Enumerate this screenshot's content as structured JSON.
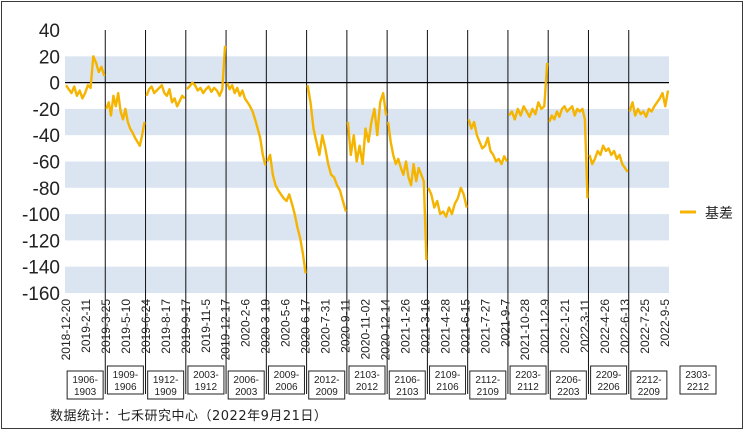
{
  "chart_data": {
    "type": "line",
    "title": "",
    "xlabel": "",
    "ylabel": "",
    "ylim": [
      -160,
      40
    ],
    "y_ticks": [
      40,
      20,
      0,
      -20,
      -40,
      -60,
      -80,
      -100,
      -120,
      -140,
      -160
    ],
    "grid": "alternating horizontal bands",
    "legend_position": "right",
    "series": [
      {
        "name": "基差",
        "color": "#f5b400",
        "segments": [
          {
            "contract": "1906-1903",
            "values": [
              -2,
              -5,
              -8,
              -3,
              -10,
              -6,
              -12,
              -8,
              -2,
              -4,
              20,
              15,
              8,
              12,
              5
            ]
          },
          {
            "contract": "1909-1906",
            "values": [
              -20,
              -15,
              -25,
              -10,
              -18,
              -8,
              -22,
              -28,
              -20,
              -30,
              -35,
              -38,
              -42,
              -45,
              -48,
              -40,
              -30
            ]
          },
          {
            "contract": "1912-1909",
            "values": [
              -10,
              -5,
              -3,
              -8,
              -6,
              -4,
              -2,
              -8,
              -10,
              -5,
              -15,
              -12,
              -18,
              -14,
              -10,
              -12
            ]
          },
          {
            "contract": "2003-1912",
            "values": [
              -5,
              -3,
              0,
              -2,
              -6,
              -4,
              -8,
              -5,
              -3,
              -7,
              -4,
              -6,
              -10,
              -5,
              28
            ]
          },
          {
            "contract": "2006-2003",
            "values": [
              0,
              -5,
              -2,
              -8,
              -4,
              -10,
              -6,
              -12,
              -15,
              -18,
              -22,
              -28,
              -35,
              -42,
              -55,
              -63
            ]
          },
          {
            "contract": "2009-2006",
            "values": [
              -60,
              -55,
              -70,
              -78,
              -82,
              -85,
              -88,
              -90,
              -85,
              -92,
              -100,
              -110,
              -118,
              -130,
              -145
            ]
          },
          {
            "contract": "2012-2009",
            "values": [
              -2,
              -15,
              -35,
              -45,
              -55,
              -40,
              -50,
              -62,
              -70,
              -72,
              -78,
              -82,
              -90,
              -98
            ]
          },
          {
            "contract": "2103-2012",
            "values": [
              -30,
              -55,
              -40,
              -60,
              -48,
              -62,
              -35,
              -45,
              -30,
              -20,
              -40,
              -15,
              -8,
              -25
            ]
          },
          {
            "contract": "2106-2103",
            "values": [
              -30,
              -45,
              -55,
              -62,
              -58,
              -65,
              -70,
              -60,
              -72,
              -78,
              -62,
              -75,
              -65,
              -70,
              -75,
              -135
            ]
          },
          {
            "contract": "2109-2106",
            "values": [
              -80,
              -85,
              -95,
              -90,
              -100,
              -98,
              -102,
              -95,
              -100,
              -92,
              -88,
              -80,
              -85,
              -95
            ]
          },
          {
            "contract": "2112-2109",
            "values": [
              -28,
              -35,
              -30,
              -40,
              -45,
              -50,
              -48,
              -42,
              -52,
              -55,
              -60,
              -58,
              -62,
              -56,
              -60
            ]
          },
          {
            "contract": "2203-2112",
            "values": [
              -25,
              -22,
              -28,
              -20,
              -25,
              -18,
              -22,
              -26,
              -20,
              -24,
              -15,
              -20,
              -18,
              15
            ]
          },
          {
            "contract": "2206-2203",
            "values": [
              -30,
              -25,
              -28,
              -22,
              -26,
              -20,
              -18,
              -22,
              -20,
              -18,
              -25,
              -20,
              -22,
              -20,
              -28,
              -88
            ]
          },
          {
            "contract": "2209-2206",
            "values": [
              -55,
              -62,
              -58,
              -52,
              -55,
              -48,
              -52,
              -50,
              -55,
              -52,
              -58,
              -55,
              -62,
              -65,
              -68
            ]
          },
          {
            "contract": "2212-2209",
            "values": [
              -22,
              -15,
              -25,
              -20,
              -24,
              -22,
              -26,
              -20,
              -22,
              -18,
              -15,
              -12,
              -8,
              -18,
              -6
            ]
          }
        ]
      }
    ],
    "x_tick_labels": [
      "2018-12-20",
      "2019-2-11",
      "2019-3-25",
      "2019-5-10",
      "2019-6-24",
      "2019-8-17",
      "2019-9-17",
      "2019-11-5",
      "2019-12-17",
      "2020-2-6",
      "2020-3-19",
      "2020-5-6",
      "2020-6-17",
      "2020-7-31",
      "2020-9-11",
      "2020-11-02",
      "2020-12-14",
      "2021-1-26",
      "2021-3-16",
      "2021-4-28",
      "2021-6-15",
      "2021-7-27",
      "2021-9-7",
      "2021-10-28",
      "2021-12-9",
      "2022-1-21",
      "2022-3-11",
      "2022-4-26",
      "2022-6-13",
      "2022-7-25",
      "2022-9-5"
    ],
    "contract_labels": [
      [
        "1906-",
        "1903"
      ],
      [
        "1909-",
        "1906"
      ],
      [
        "1912-",
        "1909"
      ],
      [
        "2003-",
        "1912"
      ],
      [
        "2006-",
        "2003"
      ],
      [
        "2009-",
        "2006"
      ],
      [
        "2012-",
        "2009"
      ],
      [
        "2103-",
        "2012"
      ],
      [
        "2106-",
        "2103"
      ],
      [
        "2109-",
        "2106"
      ],
      [
        "2112-",
        "2109"
      ],
      [
        "2203-",
        "2112"
      ],
      [
        "2206-",
        "2203"
      ],
      [
        "2209-",
        "2206"
      ],
      [
        "2212-",
        "2209"
      ],
      [
        "2303-",
        "2212"
      ]
    ]
  },
  "source_note": "数据统计：七禾研究中心（2022年9月21日）"
}
